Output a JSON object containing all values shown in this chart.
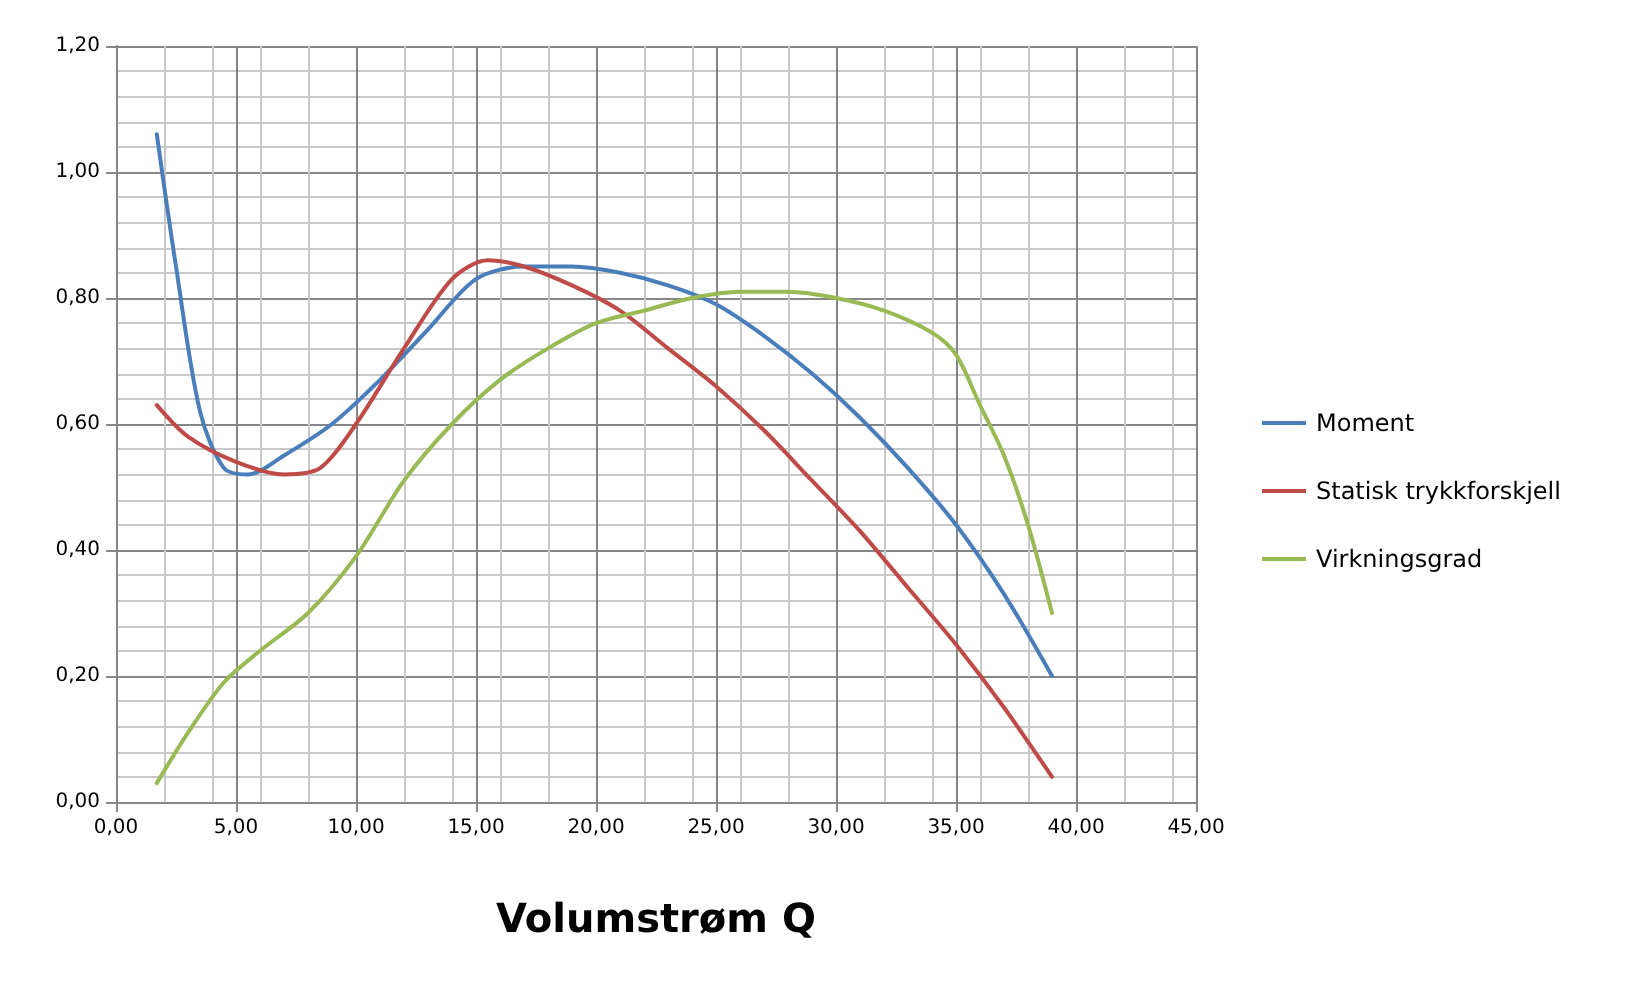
{
  "chart_data": {
    "type": "line",
    "xlabel": "Volumstrøm Q",
    "xlim": [
      0,
      45
    ],
    "ylim": [
      0,
      1.2
    ],
    "xticks": [
      {
        "value": 0,
        "label": "0,00"
      },
      {
        "value": 5,
        "label": "5,00"
      },
      {
        "value": 10,
        "label": "10,00"
      },
      {
        "value": 15,
        "label": "15,00"
      },
      {
        "value": 20,
        "label": "20,00"
      },
      {
        "value": 25,
        "label": "25,00"
      },
      {
        "value": 30,
        "label": "30,00"
      },
      {
        "value": 35,
        "label": "35,00"
      },
      {
        "value": 40,
        "label": "40,00"
      },
      {
        "value": 45,
        "label": "45,00"
      }
    ],
    "yticks": [
      {
        "value": 0,
        "label": "0,00"
      },
      {
        "value": 0.2,
        "label": "0,20"
      },
      {
        "value": 0.4,
        "label": "0,40"
      },
      {
        "value": 0.6,
        "label": "0,60"
      },
      {
        "value": 0.8,
        "label": "0,80"
      },
      {
        "value": 1.0,
        "label": "1,00"
      },
      {
        "value": 1.2,
        "label": "1,20"
      }
    ],
    "grid": true,
    "legend": "right",
    "marker": "none",
    "line_style": "solid",
    "series": [
      {
        "name": "Moment",
        "color": "#4a7ebb",
        "x": [
          1.7,
          2.5,
          3.5,
          4.5,
          5.5,
          7,
          9,
          11,
          13,
          15,
          17,
          19,
          21,
          23,
          25,
          27,
          29,
          31,
          33,
          35,
          37,
          39
        ],
        "values": [
          1.06,
          0.85,
          0.62,
          0.53,
          0.52,
          0.55,
          0.6,
          0.67,
          0.75,
          0.83,
          0.85,
          0.85,
          0.84,
          0.82,
          0.79,
          0.74,
          0.68,
          0.61,
          0.53,
          0.44,
          0.33,
          0.2
        ]
      },
      {
        "name": "Statisk trykkforskjell",
        "color": "#be4b48",
        "x": [
          1.7,
          3,
          5,
          7,
          8.5,
          10,
          12,
          14,
          15.5,
          17,
          19,
          21,
          23,
          25,
          27,
          29,
          31,
          33,
          35,
          37,
          39
        ],
        "values": [
          0.63,
          0.58,
          0.54,
          0.52,
          0.53,
          0.6,
          0.72,
          0.83,
          0.86,
          0.85,
          0.82,
          0.78,
          0.72,
          0.66,
          0.59,
          0.51,
          0.43,
          0.34,
          0.25,
          0.15,
          0.04
        ]
      },
      {
        "name": "Virkningsgrad",
        "color": "#98b954",
        "x": [
          1.7,
          3,
          4.5,
          6,
          8,
          10,
          12,
          14,
          16,
          18,
          20,
          22,
          24,
          26,
          28,
          30,
          32,
          34,
          35,
          36,
          37,
          38,
          39
        ],
        "values": [
          0.03,
          0.11,
          0.19,
          0.24,
          0.3,
          0.39,
          0.51,
          0.6,
          0.67,
          0.72,
          0.76,
          0.78,
          0.8,
          0.81,
          0.81,
          0.8,
          0.78,
          0.745,
          0.71,
          0.63,
          0.55,
          0.44,
          0.3
        ]
      }
    ]
  }
}
